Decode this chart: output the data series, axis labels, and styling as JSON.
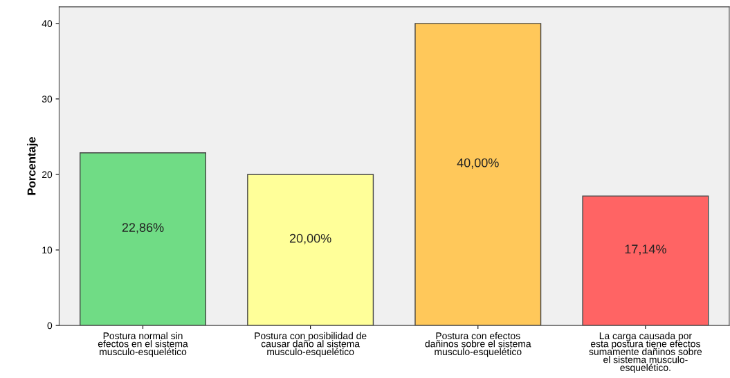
{
  "chart_data": {
    "type": "bar",
    "ylabel": "Porcentaje",
    "categories": [
      "Postura normal sin\nefectos en el sistema\nmusculo-esquelético",
      "Postura con posibilidad de\ncausar daño al sistema\nmusculo-esquelético",
      "Postura con efectos\ndañinos sobre el sistema\nmusculo-esquelético",
      "La carga causada por\nesta postura tiene efectos\nsumamente dañinos sobre\nel sistema musculo-\nesquelético."
    ],
    "values": [
      22.86,
      20.0,
      40.0,
      17.14
    ],
    "colors": [
      "#70dc85",
      "#ffff99",
      "#ffc85a",
      "#ff6464"
    ],
    "value_labels": [
      "22,86%",
      "20,00%",
      "40,00%",
      "17,14%"
    ],
    "ylim": [
      0,
      42.2
    ],
    "yticks": [
      0,
      10,
      20,
      30,
      40
    ],
    "grid": false
  }
}
